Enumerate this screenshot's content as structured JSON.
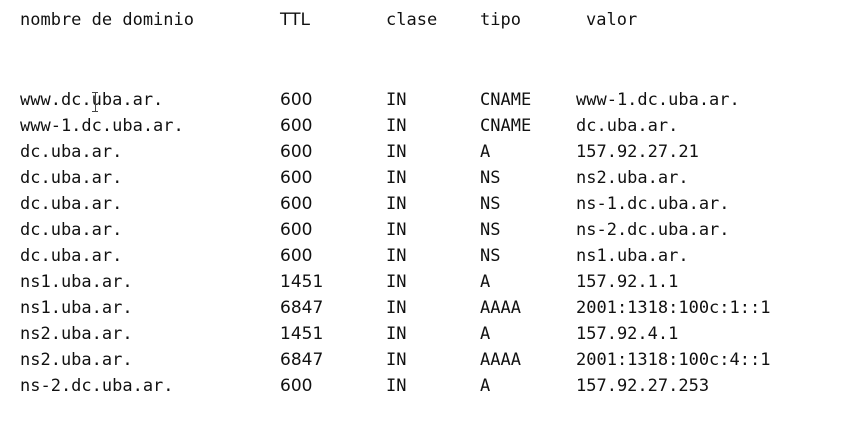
{
  "table": {
    "headers": {
      "name": "nombre de dominio",
      "ttl": "TTL",
      "class": "clase",
      "type": "tipo",
      "value": "valor"
    },
    "rows": [
      {
        "name": "www.dc.uba.ar.",
        "ttl": "600",
        "class": "IN",
        "type": "CNAME",
        "value": "www-1.dc.uba.ar."
      },
      {
        "name": "www-1.dc.uba.ar.",
        "ttl": "600",
        "class": "IN",
        "type": "CNAME",
        "value": "dc.uba.ar."
      },
      {
        "name": "dc.uba.ar.",
        "ttl": "600",
        "class": "IN",
        "type": "A",
        "value": "157.92.27.21"
      },
      {
        "name": "dc.uba.ar.",
        "ttl": "600",
        "class": "IN",
        "type": "NS",
        "value": "ns2.uba.ar."
      },
      {
        "name": "dc.uba.ar.",
        "ttl": "600",
        "class": "IN",
        "type": "NS",
        "value": "ns-1.dc.uba.ar."
      },
      {
        "name": "dc.uba.ar.",
        "ttl": "600",
        "class": "IN",
        "type": "NS",
        "value": "ns-2.dc.uba.ar."
      },
      {
        "name": "dc.uba.ar.",
        "ttl": "600",
        "class": "IN",
        "type": "NS",
        "value": "ns1.uba.ar."
      },
      {
        "name": "ns1.uba.ar.",
        "ttl": "1451",
        "class": "IN",
        "type": "A",
        "value": "157.92.1.1"
      },
      {
        "name": "ns1.uba.ar.",
        "ttl": "6847",
        "class": "IN",
        "type": "AAAA",
        "value": "2001:1318:100c:1::1"
      },
      {
        "name": "ns2.uba.ar.",
        "ttl": "1451",
        "class": "IN",
        "type": "A",
        "value": "157.92.4.1"
      },
      {
        "name": "ns2.uba.ar.",
        "ttl": "6847",
        "class": "IN",
        "type": "AAAA",
        "value": "2001:1318:100c:4::1"
      },
      {
        "name": "ns-2.dc.uba.ar.",
        "ttl": "600",
        "class": "IN",
        "type": "A",
        "value": "157.92.27.253"
      }
    ]
  }
}
